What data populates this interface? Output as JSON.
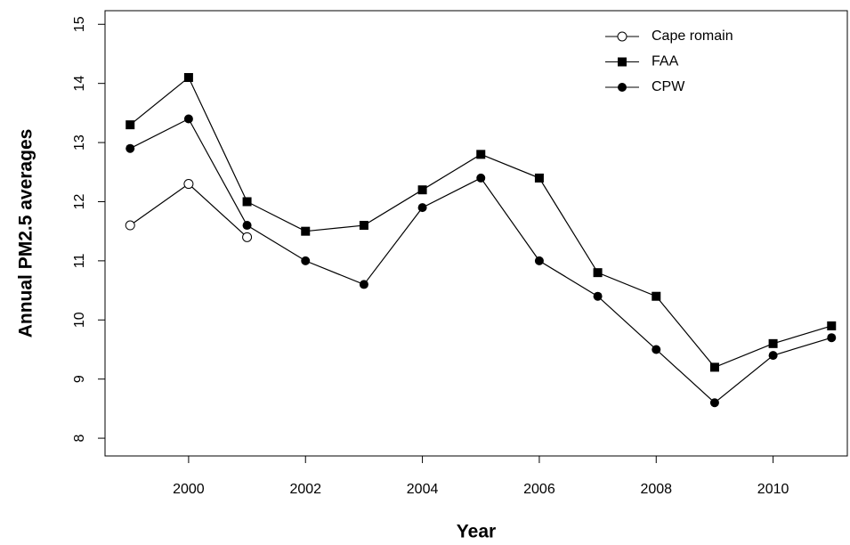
{
  "chart_data": {
    "type": "line",
    "x_label": "Year",
    "y_label": "Annual PM2.5 averages",
    "x": [
      1999,
      2000,
      2001,
      2002,
      2003,
      2004,
      2005,
      2006,
      2007,
      2008,
      2009,
      2010,
      2011
    ],
    "series": [
      {
        "name": "Cape romain",
        "color": "#000000",
        "marker": "open-circle",
        "values": [
          11.6,
          12.3,
          11.4,
          null,
          null,
          null,
          null,
          null,
          null,
          null,
          null,
          null,
          null
        ]
      },
      {
        "name": "FAA",
        "color": "#000000",
        "marker": "square",
        "values": [
          13.3,
          14.1,
          12.0,
          11.5,
          11.6,
          12.2,
          12.8,
          12.4,
          10.8,
          10.4,
          9.2,
          9.6,
          9.9
        ]
      },
      {
        "name": "CPW",
        "color": "#000000",
        "marker": "circle",
        "values": [
          12.9,
          13.4,
          11.6,
          11.0,
          10.6,
          11.9,
          12.4,
          11.0,
          10.4,
          9.5,
          8.6,
          9.4,
          9.7
        ]
      }
    ],
    "xlim": [
      1998.57,
      2011.27
    ],
    "xticks": [
      2000,
      2002,
      2004,
      2006,
      2008,
      2010
    ],
    "ylim": [
      7.7,
      15.23
    ],
    "yticks": [
      8,
      9,
      10,
      11,
      12,
      13,
      14,
      15
    ],
    "legend": "top-right",
    "grid": false
  }
}
